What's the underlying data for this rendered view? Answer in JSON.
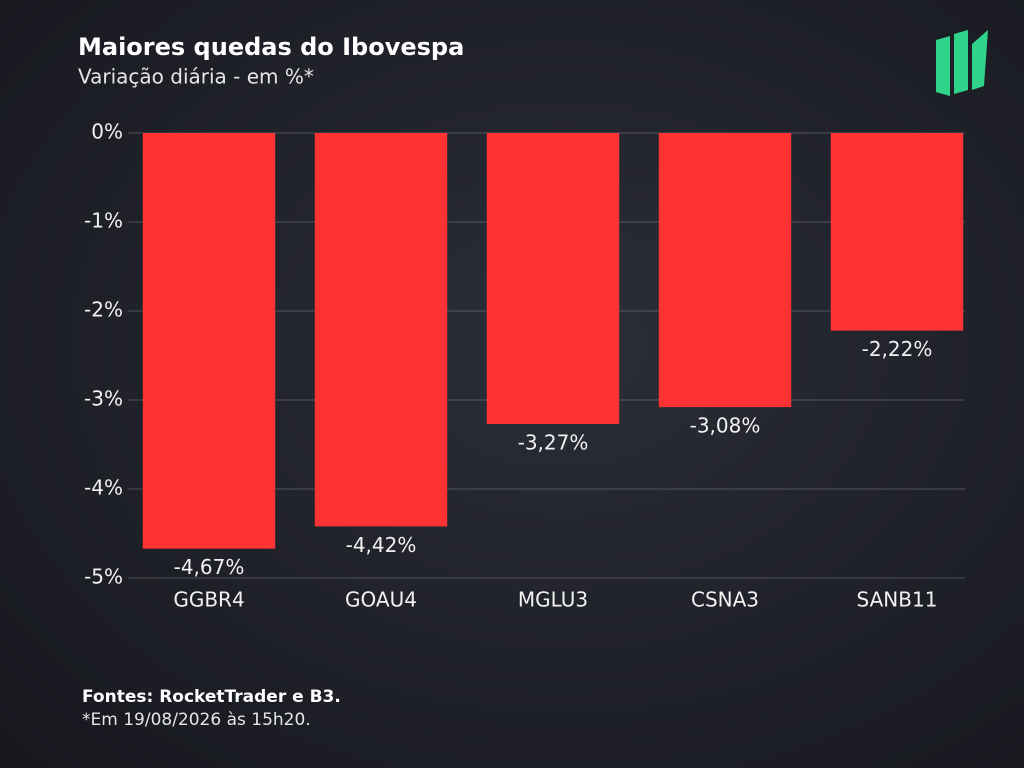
{
  "chart_data": {
    "type": "bar",
    "title": "Maiores quedas do Ibovespa",
    "subtitle": "Variação diária - em %*",
    "categories": [
      "GGBR4",
      "GOAU4",
      "MGLU3",
      "CSNA3",
      "SANB11"
    ],
    "values": [
      -4.67,
      -4.42,
      -3.27,
      -3.08,
      -2.22
    ],
    "value_labels": [
      "-4,67%",
      "-4,42%",
      "-3,27%",
      "-3,08%",
      "-2,22%"
    ],
    "color": "#ff3333",
    "ylim": [
      -5,
      0
    ],
    "yticks": [
      {
        "value": 0,
        "label": "0%"
      },
      {
        "value": -1,
        "label": "-1%"
      },
      {
        "value": -2,
        "label": "-2%"
      },
      {
        "value": -3,
        "label": "-3%"
      },
      {
        "value": -4,
        "label": "-4%"
      },
      {
        "value": -5,
        "label": "-5%"
      }
    ],
    "grid": true,
    "source": "Fontes: RocketTrader e B3.",
    "note": "*Em 19/08/2026 às 15h20."
  }
}
